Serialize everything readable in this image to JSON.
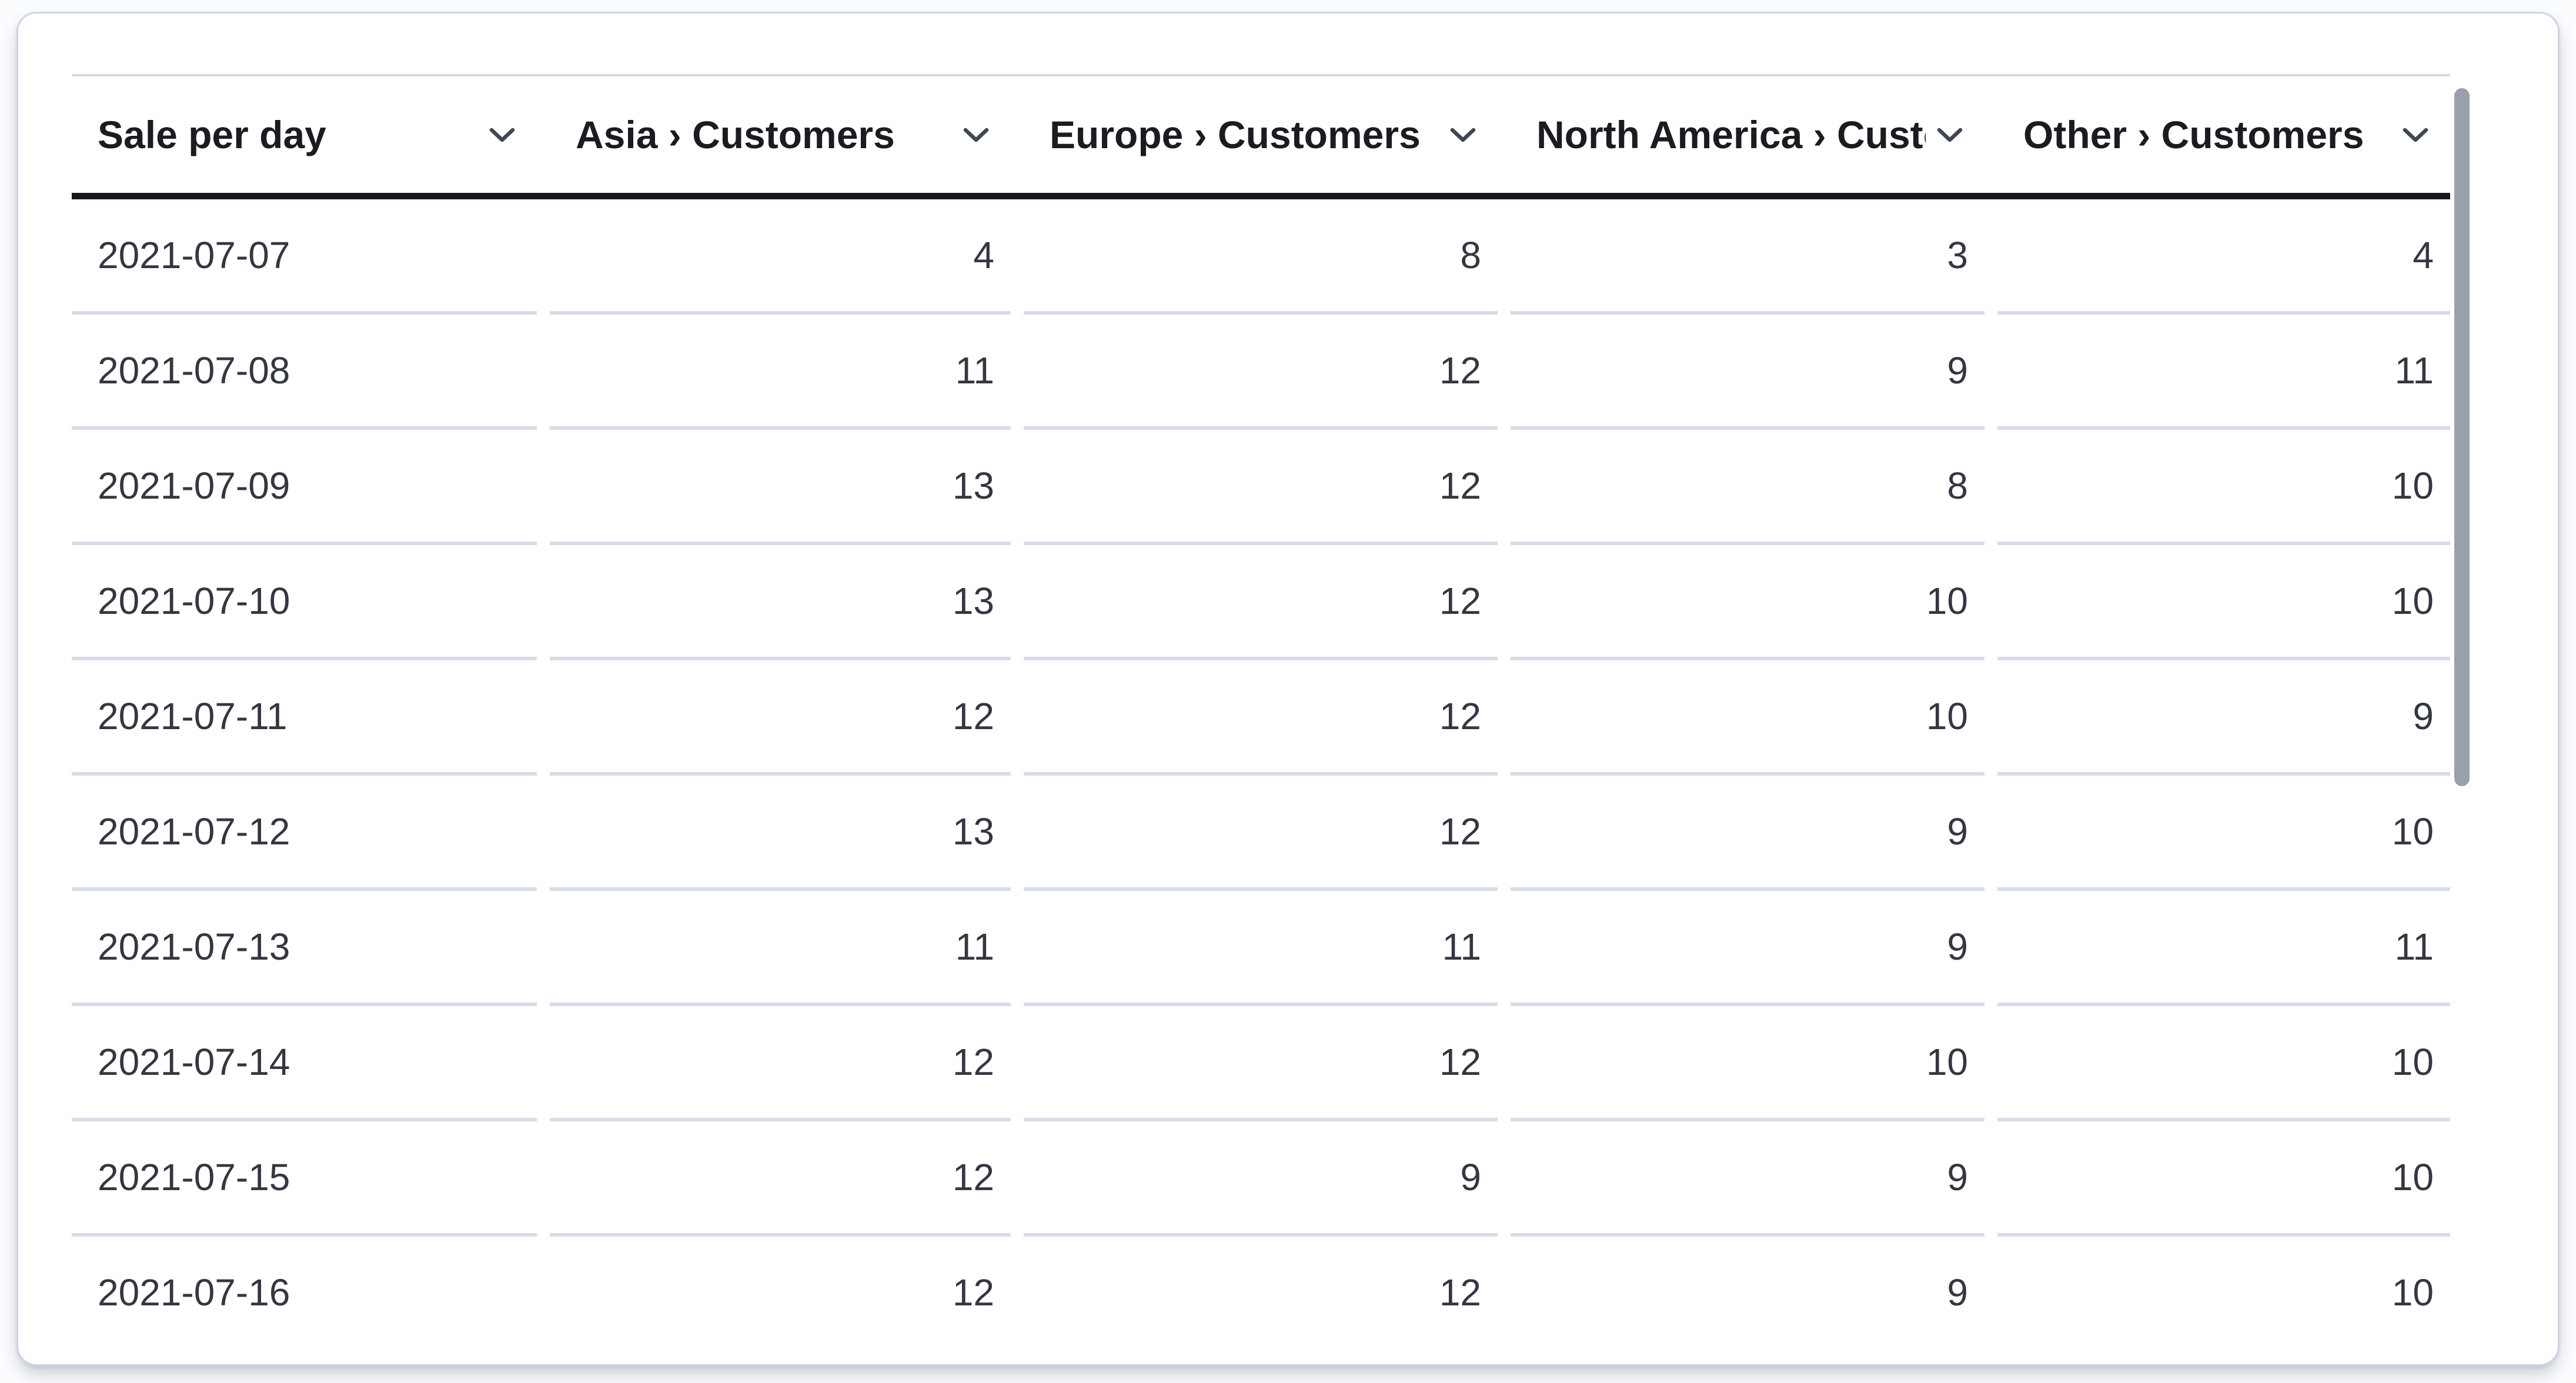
{
  "panel": {
    "type": "data-table"
  },
  "table": {
    "columns": [
      {
        "label": "Sale per day",
        "align": "left"
      },
      {
        "label": "Asia › Customers",
        "align": "right"
      },
      {
        "label": "Europe › Customers",
        "align": "right"
      },
      {
        "label": "North America › Customers",
        "align": "right"
      },
      {
        "label": "Other › Customers",
        "align": "right"
      }
    ],
    "rows": [
      [
        "2021-07-07",
        "4",
        "8",
        "3",
        "4"
      ],
      [
        "2021-07-08",
        "11",
        "12",
        "9",
        "11"
      ],
      [
        "2021-07-09",
        "13",
        "12",
        "8",
        "10"
      ],
      [
        "2021-07-10",
        "13",
        "12",
        "10",
        "10"
      ],
      [
        "2021-07-11",
        "12",
        "12",
        "10",
        "9"
      ],
      [
        "2021-07-12",
        "13",
        "12",
        "9",
        "10"
      ],
      [
        "2021-07-13",
        "11",
        "11",
        "9",
        "11"
      ],
      [
        "2021-07-14",
        "12",
        "12",
        "10",
        "10"
      ],
      [
        "2021-07-15",
        "12",
        "9",
        "9",
        "10"
      ],
      [
        "2021-07-16",
        "12",
        "12",
        "9",
        "10"
      ]
    ]
  },
  "icons": {
    "header_sort": "chevron-down-icon"
  },
  "colors": {
    "page_bg": "#fbfcfe",
    "card_bg": "#ffffff",
    "card_border": "#ccd5e2",
    "header_text": "#1a1c21",
    "body_text": "#343741",
    "row_divider": "#d6dce8",
    "header_underline": "#15171c",
    "header_topline": "#d3dae6",
    "scrollbar_thumb": "#99a0ab"
  }
}
